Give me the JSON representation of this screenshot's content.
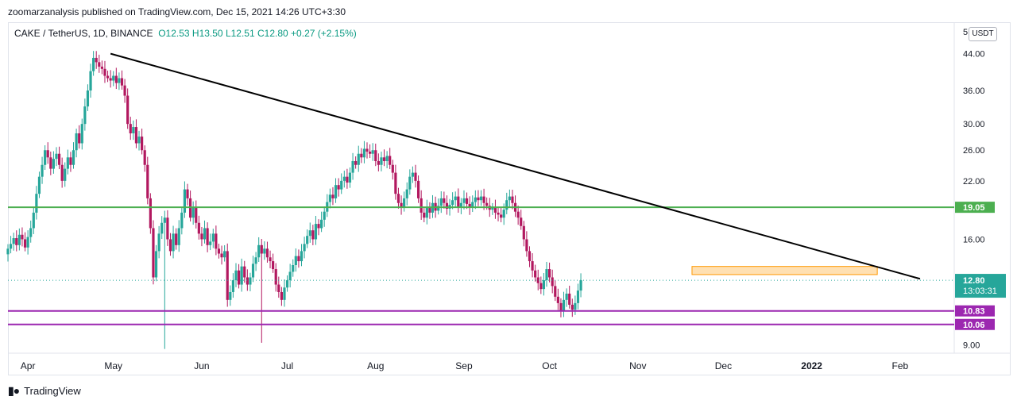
{
  "header": {
    "published": "zoomarzanalysis published on TradingView.com, Dec 15, 2021 14:26 UTC+3:30"
  },
  "legend": {
    "symbol": "CAKE / TetherUS, 1D, BINANCE",
    "open": "O12.53",
    "high": "H13.50",
    "low": "L12.51",
    "close": "C12.80",
    "change": "+0.27 (+2.15%)"
  },
  "currency_button": "USDT",
  "footer": {
    "brand": "TradingView"
  },
  "colors": {
    "up": "#26a69a",
    "down": "#b2185f",
    "green_line": "#4caf50",
    "purple_line": "#9c27b0",
    "trend_line": "#000000",
    "zone_fill": "#ffe0b2",
    "zone_border": "#ff9800",
    "price_tag": "#26a69a"
  },
  "chart_data": {
    "type": "candlestick",
    "symbol": "CAKE / TetherUS",
    "interval": "1D",
    "exchange": "BINANCE",
    "y_scale": "log",
    "ylim": [
      8.6,
      52
    ],
    "y_ticks": [
      {
        "value": 44,
        "label": "44.00"
      },
      {
        "value": 36,
        "label": "36.00"
      },
      {
        "value": 30,
        "label": "30.00"
      },
      {
        "value": 26,
        "label": "26.00"
      },
      {
        "value": 22,
        "label": "22.00"
      },
      {
        "value": 16,
        "label": "16.00"
      },
      {
        "value": 9,
        "label": "9.00"
      }
    ],
    "top_tick_label": "5",
    "x_ticks": [
      "Apr",
      "May",
      "Jun",
      "Jul",
      "Aug",
      "Sep",
      "Oct",
      "Nov",
      "Dec",
      "2022",
      "Feb"
    ],
    "x_range": [
      "2021-03-25",
      "2022-02-20"
    ],
    "x_tick_dates": [
      "2021-04-01",
      "2021-05-01",
      "2021-06-01",
      "2021-07-01",
      "2021-08-01",
      "2021-09-01",
      "2021-10-01",
      "2021-11-01",
      "2021-12-01",
      "2022-01-01",
      "2022-02-01"
    ],
    "horizontal_levels": [
      {
        "value": 19.05,
        "label": "19.05",
        "color": "green"
      },
      {
        "value": 10.83,
        "label": "10.83",
        "color": "purple"
      },
      {
        "value": 10.06,
        "label": "10.06",
        "color": "purple"
      }
    ],
    "last_price": {
      "value": 12.8,
      "label": "12.80",
      "countdown": "13:03:31"
    },
    "trend_line": {
      "from": {
        "date": "2021-04-30",
        "value": 44.0
      },
      "to": {
        "date": "2022-02-08",
        "value": 12.9
      }
    },
    "zone": {
      "from_date": "2021-11-20",
      "to_date": "2022-01-24",
      "low": 13.2,
      "high": 13.8
    },
    "start_date": "2021-03-25",
    "closes": [
      15.2,
      15.6,
      16.1,
      15.5,
      16.4,
      16.0,
      15.3,
      16.2,
      17.0,
      18.5,
      20.5,
      22.5,
      24.0,
      26.0,
      25.0,
      23.5,
      24.8,
      25.5,
      24.0,
      22.0,
      23.5,
      25.0,
      24.0,
      26.0,
      28.5,
      27.0,
      30.0,
      33.0,
      36.0,
      40.0,
      43.0,
      42.0,
      41.0,
      40.5,
      39.0,
      38.5,
      38.0,
      39.0,
      37.5,
      38.5,
      37.0,
      35.0,
      30.0,
      28.5,
      29.5,
      27.0,
      28.0,
      26.0,
      24.0,
      20.0,
      17.0,
      13.0,
      15.0,
      16.5,
      17.5,
      18.0,
      16.0,
      15.0,
      16.5,
      15.5,
      17.0,
      18.5,
      21.0,
      20.0,
      18.0,
      19.0,
      17.5,
      16.5,
      16.0,
      17.0,
      15.5,
      15.8,
      16.5,
      15.2,
      14.8,
      14.5,
      15.0,
      11.5,
      12.0,
      12.8,
      13.5,
      12.5,
      13.8,
      13.0,
      12.5,
      13.0,
      14.0,
      14.5,
      15.5,
      14.8,
      15.2,
      14.5,
      14.2,
      13.6,
      12.5,
      12.0,
      11.5,
      12.3,
      12.8,
      13.4,
      13.9,
      14.6,
      14.2,
      15.0,
      15.6,
      16.3,
      16.8,
      16.0,
      17.4,
      17.0,
      17.8,
      18.6,
      19.6,
      20.4,
      20.0,
      21.5,
      21.0,
      22.0,
      22.5,
      21.8,
      23.0,
      24.5,
      24.0,
      25.5,
      25.0,
      26.2,
      25.8,
      25.5,
      26.0,
      24.5,
      24.0,
      25.0,
      24.5,
      25.2,
      24.0,
      23.0,
      20.5,
      19.5,
      19.0,
      20.0,
      21.0,
      22.5,
      23.0,
      22.0,
      20.0,
      18.5,
      18.0,
      19.0,
      18.5,
      19.5,
      18.7,
      19.2,
      20.0,
      19.5,
      18.9,
      19.3,
      19.8,
      20.2,
      19.0,
      19.5,
      20.0,
      19.4,
      19.0,
      19.6,
      20.1,
      19.8,
      20.2,
      19.5,
      19.2,
      18.8,
      19.0,
      18.5,
      18.3,
      18.0,
      18.8,
      19.8,
      20.2,
      19.5,
      18.6,
      18.0,
      17.2,
      16.0,
      15.0,
      14.2,
      13.5,
      13.0,
      12.6,
      12.2,
      12.8,
      13.6,
      13.0,
      12.4,
      11.7,
      11.3,
      10.8,
      11.5,
      11.9,
      11.2,
      10.9,
      11.3,
      12.1,
      12.8
    ],
    "special_lows": {
      "2021-05-19": 8.8,
      "2021-06-22": 9.1,
      "2021-12-04": 10.06
    }
  }
}
